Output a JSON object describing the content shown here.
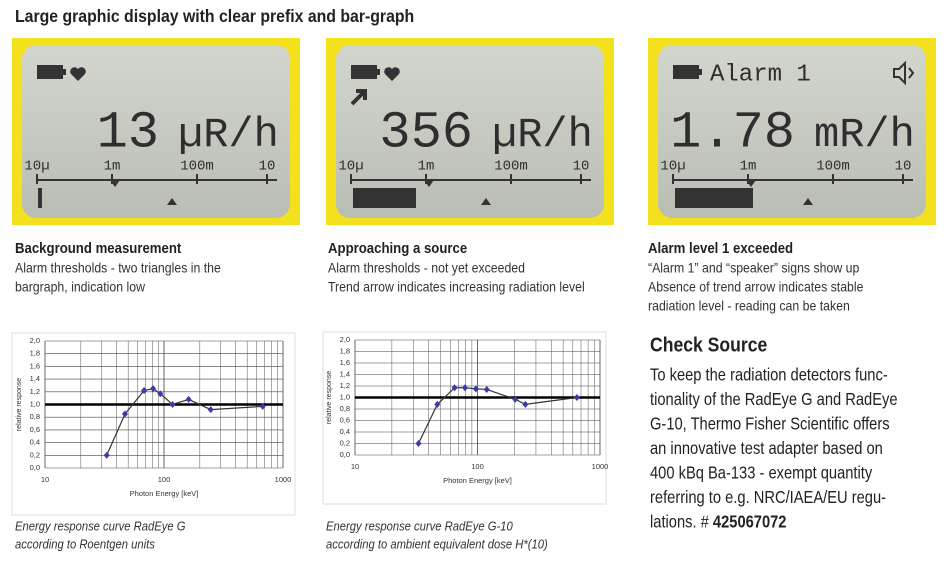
{
  "header": {
    "title": "Large graphic display with clear prefix and bar-graph"
  },
  "displays": [
    {
      "reading": "13",
      "unit": "µR/h",
      "scale": [
        "10µ",
        "1m",
        "100m",
        "10"
      ]
    },
    {
      "reading": "356",
      "unit": "µR/h",
      "scale": [
        "10µ",
        "1m",
        "100m",
        "10"
      ]
    },
    {
      "prefix": "Alarm 1",
      "reading": "1.78",
      "unit": "mR/h",
      "scale": [
        "10µ",
        "1m",
        "100m",
        "10"
      ]
    }
  ],
  "captions": [
    {
      "title": "Background measurement",
      "lines": [
        "Alarm thresholds - two triangles in the",
        "bargraph, indication low"
      ]
    },
    {
      "title": "Approaching a source",
      "lines": [
        "Alarm thresholds - not yet exceeded",
        "Trend arrow indicates increasing radiation level"
      ]
    },
    {
      "title": "Alarm level 1 exceeded",
      "lines": [
        "“Alarm 1” and “speaker” signs show up",
        "Absence of trend arrow indicates stable",
        "radiation level - reading can be taken"
      ]
    }
  ],
  "check_source": {
    "title": "Check Source",
    "lines": [
      "To keep the radiation detectors func-",
      "tionality of the RadEye G and RadEye",
      "G-10, Thermo Fisher Scientific offers",
      "an innovative test adapter based on",
      "400 kBq Ba-133 - exempt quantity",
      "referring to e.g. NRC/IAEA/EU regu-"
    ],
    "last_line": "lations. #",
    "part_number": "425067072"
  },
  "chart_data": [
    {
      "type": "line",
      "xlabel": "Photon Energy [keV]",
      "ylabel": "relative response",
      "x": [
        33,
        47,
        68,
        81,
        93,
        118,
        161,
        247,
        675
      ],
      "values": [
        0.2,
        0.85,
        1.22,
        1.25,
        1.17,
        1.0,
        1.08,
        0.92,
        0.97
      ],
      "color": "#3a3aa8",
      "xlog": true,
      "xlim": [
        10,
        1000
      ],
      "xticks": [
        10,
        100,
        1000
      ],
      "xminorticks": [
        20,
        30,
        40,
        50,
        60,
        70,
        80,
        90,
        200,
        300,
        400,
        500,
        600,
        700,
        800,
        900
      ],
      "ylim": [
        0,
        2
      ],
      "yticks": [
        {
          "value": 0,
          "label": "0,0"
        },
        {
          "value": 0.2,
          "label": "0,2"
        },
        {
          "value": 0.4,
          "label": "0,4"
        },
        {
          "value": 0.6,
          "label": "0,6"
        },
        {
          "value": 0.8,
          "label": "0,8"
        },
        {
          "value": 1,
          "label": "1,0"
        },
        {
          "value": 1.2,
          "label": "1,2"
        },
        {
          "value": 1.4,
          "label": "1,4"
        },
        {
          "value": 1.6,
          "label": "1,6"
        },
        {
          "value": 1.8,
          "label": "1,8"
        },
        {
          "value": 2,
          "label": "2,0"
        }
      ],
      "reference_line": 1,
      "grid": true,
      "caption": [
        "Energy response curve RadEye G",
        "according to Roentgen units"
      ]
    },
    {
      "type": "line",
      "xlabel": "Photon Energy [keV]",
      "ylabel": "relative response",
      "x": [
        33,
        47,
        65,
        79,
        97,
        119,
        203,
        246,
        648
      ],
      "values": [
        0.2,
        0.88,
        1.17,
        1.17,
        1.15,
        1.14,
        0.97,
        0.88,
        1.0
      ],
      "color": "#3a3aa8",
      "xlog": true,
      "xlim": [
        10,
        1000
      ],
      "xticks": [
        10,
        100,
        1000
      ],
      "xminorticks": [
        20,
        30,
        40,
        50,
        60,
        70,
        80,
        90,
        200,
        300,
        400,
        500,
        600,
        700,
        800,
        900
      ],
      "ylim": [
        0,
        2
      ],
      "yticks": [
        {
          "value": 0,
          "label": "0,0"
        },
        {
          "value": 0.2,
          "label": "0,2"
        },
        {
          "value": 0.4,
          "label": "0,4"
        },
        {
          "value": 0.6,
          "label": "0,6"
        },
        {
          "value": 0.8,
          "label": "0,8"
        },
        {
          "value": 1,
          "label": "1,0"
        },
        {
          "value": 1.2,
          "label": "1,2"
        },
        {
          "value": 1.4,
          "label": "1,4"
        },
        {
          "value": 1.6,
          "label": "1,6"
        },
        {
          "value": 1.8,
          "label": "1,8"
        },
        {
          "value": 2,
          "label": "2,0"
        }
      ],
      "reference_line": 1,
      "grid": true,
      "caption": [
        "Energy response curve RadEye G-10",
        "according to ambient equivalent dose H*(10)"
      ]
    }
  ]
}
